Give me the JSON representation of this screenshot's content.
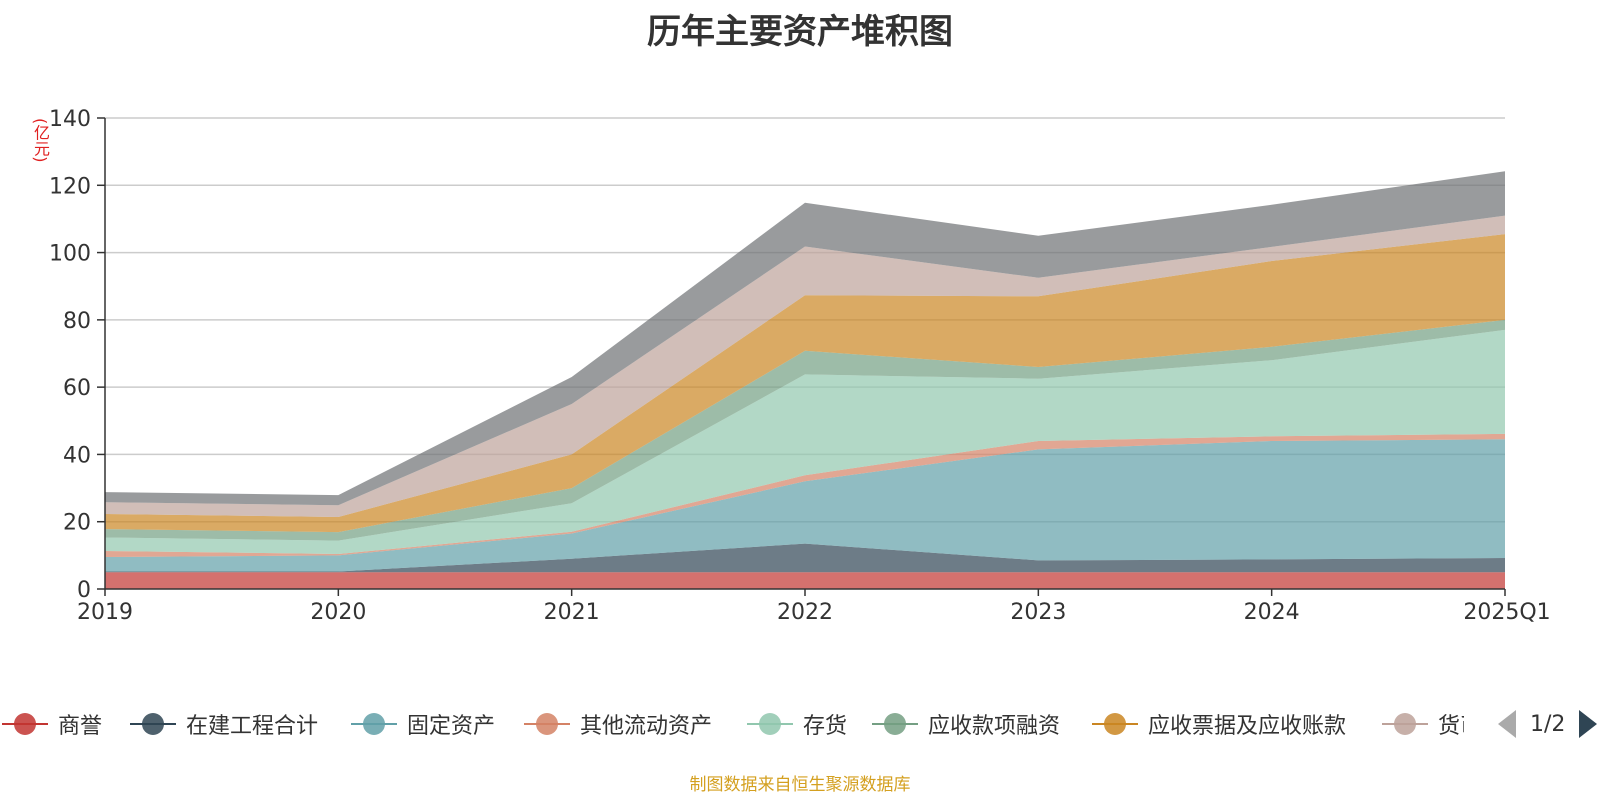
{
  "chart_data": {
    "type": "area",
    "title": "历年主要资产堆积图",
    "unit_label": "(亿元)",
    "source": "制图数据来自恒生聚源数据库",
    "stacked": true,
    "categories": [
      "2019",
      "2020",
      "2021",
      "2022",
      "2023",
      "2024",
      "2025Q1"
    ],
    "ylim": [
      0,
      140
    ],
    "yticks": [
      0,
      20,
      40,
      60,
      80,
      100,
      120,
      140
    ],
    "grid": true,
    "legend_position": "bottom",
    "legend_page": "1/2",
    "series": [
      {
        "name": "商誉",
        "color": "#c23531",
        "values": [
          5,
          5,
          5,
          5,
          5,
          5,
          5
        ]
      },
      {
        "name": "在建工程合计",
        "color": "#2f4554",
        "values": [
          0.2,
          0.2,
          4,
          8.5,
          3.5,
          3.8,
          4.2
        ]
      },
      {
        "name": "固定资产",
        "color": "#61a0a8",
        "values": [
          4.3,
          4.8,
          7.5,
          18.5,
          33,
          35.2,
          35.3
        ]
      },
      {
        "name": "其他流动资产",
        "color": "#d48265",
        "values": [
          1.8,
          0.4,
          0.5,
          1.8,
          2.5,
          1.4,
          1.6
        ]
      },
      {
        "name": "存货",
        "color": "#91c7ae",
        "values": [
          4,
          4,
          8.5,
          30,
          18.5,
          22.6,
          30.9
        ]
      },
      {
        "name": "应收款项融资",
        "color": "#749f83",
        "values": [
          2.5,
          2.5,
          4.5,
          7,
          3.5,
          4,
          3
        ]
      },
      {
        "name": "应收票据及应收账款",
        "color": "#ca8622",
        "values": [
          4.5,
          4.5,
          10,
          16.5,
          21,
          25.5,
          25.5
        ]
      },
      {
        "name": "货币资金",
        "color": "#bda29a",
        "values": [
          3.5,
          3.5,
          15,
          14.5,
          5.5,
          4.2,
          5.5
        ]
      },
      {
        "name": "",
        "color": "#6e7074",
        "values": [
          3,
          3,
          8,
          13,
          12.5,
          12.5,
          13.2
        ]
      }
    ]
  }
}
